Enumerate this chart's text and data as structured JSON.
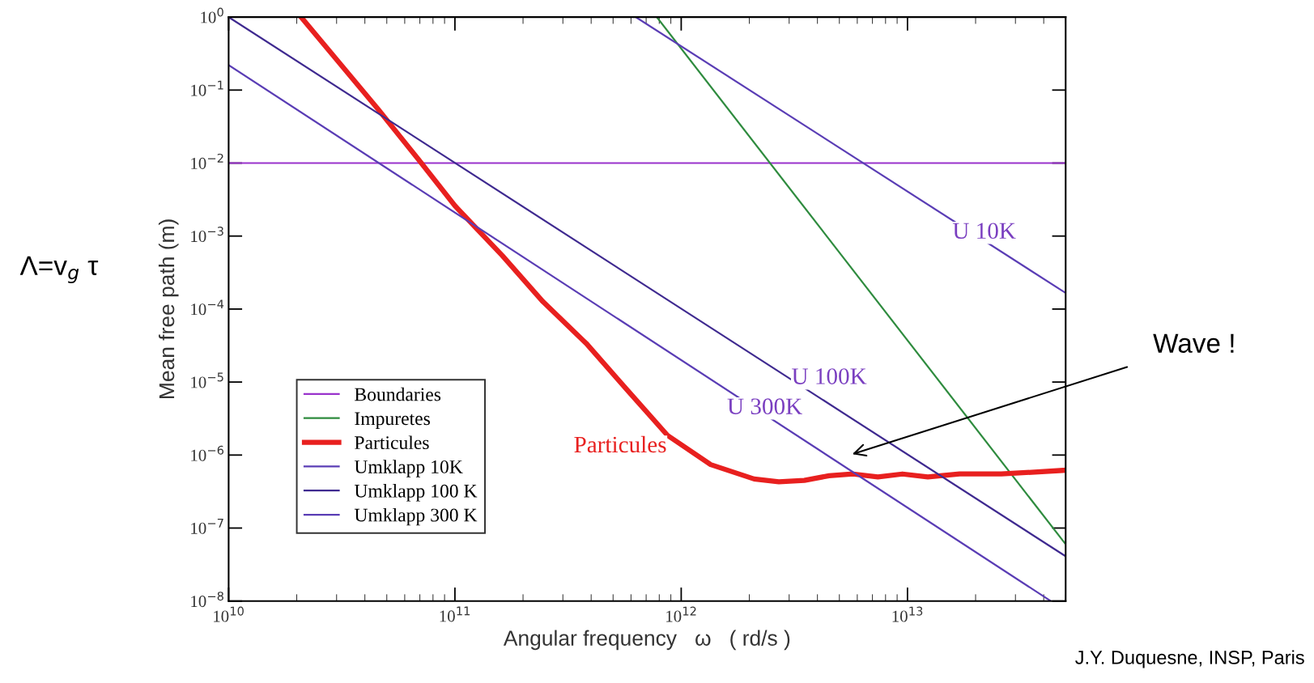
{
  "chart_data": {
    "type": "line",
    "xlabel": "Angular frequency   ω   ( rd/s )",
    "ylabel": "Mean free path (m)",
    "log": "xy",
    "xlim": [
      10000000000.0,
      50000000000000.0
    ],
    "ylim": [
      1e-08,
      1
    ],
    "xticks": [
      {
        "value": 10000000000.0,
        "label": "10$^{10}$"
      },
      {
        "value": 100000000000.0,
        "label": "10$^{11}$"
      },
      {
        "value": 1000000000000.0,
        "label": "10$^{12}$"
      },
      {
        "value": 10000000000000.0,
        "label": "10$^{13}$"
      }
    ],
    "yticks": [
      {
        "value": 1e-08,
        "label": "10$^{−8}$"
      },
      {
        "value": 1e-07,
        "label": "10$^{−7}$"
      },
      {
        "value": 1e-06,
        "label": "10$^{−6}$"
      },
      {
        "value": 1e-05,
        "label": "10$^{−5}$"
      },
      {
        "value": 0.0001,
        "label": "10$^{−4}$"
      },
      {
        "value": 0.001,
        "label": "10$^{−3}$"
      },
      {
        "value": 0.01,
        "label": "10$^{−2}$"
      },
      {
        "value": 0.1,
        "label": "10$^{−1}$"
      },
      {
        "value": 1,
        "label": "10$^{0}$"
      }
    ],
    "grid": false,
    "legend": "bottom left",
    "series": [
      {
        "name": "Boundaries",
        "color": "#9933cc",
        "x": [
          10000000000.0,
          50000000000000.0
        ],
        "values": [
          0.01,
          0.01
        ]
      },
      {
        "name": "Impuretes",
        "color": "#2e8b3e",
        "x": [
          780000000000.0,
          50000000000000.0
        ],
        "values": [
          1,
          6e-08
        ]
      },
      {
        "name": "Particules",
        "color": "#e8201f",
        "x": [
          20900000000.0,
          45700000000.0,
          69000000000.0,
          100000000000.0,
          162000000000.0,
          245000000000.0,
          380000000000.0,
          575000000000.0,
          870000000000.0,
          1350000000000.0,
          2100000000000.0,
          2700000000000.0,
          3500000000000.0,
          4500000000000.0,
          5750000000000.0,
          7400000000000.0,
          9500000000000.0,
          12300000000000.0,
          17000000000000.0,
          26000000000000.0,
          50000000000000.0
        ],
        "values": [
          1,
          0.055,
          0.0112,
          0.0026,
          0.00054,
          0.000126,
          3.4e-05,
          7.9e-06,
          1.86e-06,
          7.4e-07,
          4.7e-07,
          4.3e-07,
          4.5e-07,
          5.2e-07,
          5.5e-07,
          5e-07,
          5.5e-07,
          5e-07,
          5.5e-07,
          5.5e-07,
          6.2e-07
        ]
      },
      {
        "name": "Umklapp 10K",
        "color": "#5a3db5",
        "x": [
          630000000000.0,
          50000000000000.0
        ],
        "values": [
          1,
          0.000166
        ]
      },
      {
        "name": "Umklapp 100 K",
        "color": "#3f2a90",
        "x": [
          10000000000.0,
          50000000000000.0
        ],
        "values": [
          1,
          4.1e-08
        ]
      },
      {
        "name": "Umklapp 300 K",
        "color": "#5a3db5",
        "x": [
          10000000000.0,
          43000000000000.0
        ],
        "values": [
          0.22,
          1e-08
        ]
      }
    ],
    "annotations": [
      "U 10K",
      "U 100K",
      "U 300K",
      "Particules",
      "Wave !",
      "Λ=v$_{g}$ τ",
      "J.Y. Duquesne, INSP, Paris"
    ]
  }
}
